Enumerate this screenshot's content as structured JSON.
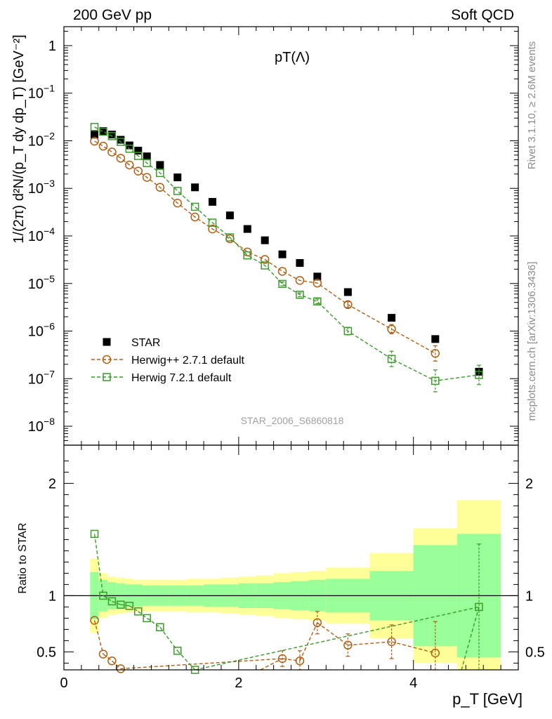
{
  "header": {
    "left": "200 GeV pp",
    "right": "Soft QCD"
  },
  "side_labels": {
    "rivet": "Rivet 3.1.10, ≥ 2.6M events",
    "mcplots": "mcplots.cern.ch [arXiv:1306.3436]"
  },
  "watermark": "STAR_2006_S6860818",
  "chart_data": [
    {
      "type": "scatter",
      "title": "pT(Λ)",
      "ylabel": "1/(2π) d²N/(p_T dy dp_T) [GeV⁻²]",
      "xlabel": "",
      "yscale": "log",
      "xlim": [
        0,
        5.2
      ],
      "ylim": [
        4e-09,
        2.5
      ],
      "yticks": [
        {
          "value": 1,
          "base": "1",
          "exp": ""
        },
        {
          "value": 0.1,
          "base": "10",
          "exp": "−1"
        },
        {
          "value": 0.01,
          "base": "10",
          "exp": "−2"
        },
        {
          "value": 0.001,
          "base": "10",
          "exp": "−3"
        },
        {
          "value": 0.0001,
          "base": "10",
          "exp": "−4"
        },
        {
          "value": 1e-05,
          "base": "10",
          "exp": "−5"
        },
        {
          "value": 1e-06,
          "base": "10",
          "exp": "−6"
        },
        {
          "value": 1e-07,
          "base": "10",
          "exp": "−7"
        },
        {
          "value": 1e-08,
          "base": "10",
          "exp": "−8"
        }
      ],
      "legend": {
        "placement": "lower-left"
      },
      "series": [
        {
          "name": "STAR",
          "color": "#000000",
          "marker": "filled-square",
          "line": "none",
          "x": [
            0.35,
            0.45,
            0.55,
            0.65,
            0.75,
            0.85,
            0.95,
            1.1,
            1.3,
            1.5,
            1.7,
            1.9,
            2.1,
            2.3,
            2.5,
            2.7,
            2.9,
            3.25,
            3.75,
            4.25,
            4.75
          ],
          "y": [
            0.0135,
            0.016,
            0.0135,
            0.0105,
            0.008,
            0.0062,
            0.0047,
            0.0031,
            0.0017,
            0.00105,
            0.00052,
            0.00027,
            0.00014,
            8.1e-05,
            4.1e-05,
            2.7e-05,
            1.4e-05,
            6.6e-06,
            1.9e-06,
            6.8e-07,
            1.4e-07
          ]
        },
        {
          "name": "Herwig++ 2.7.1 default",
          "color": "#b25e12",
          "marker": "open-circle",
          "line": "dashed",
          "x": [
            0.35,
            0.45,
            0.55,
            0.65,
            0.75,
            0.85,
            0.95,
            1.1,
            1.3,
            1.5,
            1.7,
            1.9,
            2.1,
            2.3,
            2.5,
            2.7,
            2.9,
            3.25,
            3.75,
            4.25
          ],
          "y": [
            0.0098,
            0.0077,
            0.0058,
            0.0043,
            0.0031,
            0.0023,
            0.0017,
            0.00105,
            0.00049,
            0.00025,
            0.00014,
            8.7e-05,
            4.6e-05,
            3.2e-05,
            1.8e-05,
            1.16e-05,
            1.02e-05,
            3.6e-06,
            1.1e-06,
            3.4e-07
          ],
          "yerr_rel": [
            0,
            0,
            0,
            0,
            0,
            0,
            0,
            0,
            0,
            0,
            0,
            0,
            0,
            0,
            0,
            0,
            0,
            0.15,
            0.25,
            0.45
          ]
        },
        {
          "name": "Herwig 7.2.1 default",
          "color": "#3b9a2a",
          "marker": "open-square",
          "line": "dashed",
          "x": [
            0.35,
            0.45,
            0.55,
            0.65,
            0.75,
            0.85,
            0.95,
            1.1,
            1.3,
            1.5,
            1.7,
            1.9,
            2.1,
            2.3,
            2.5,
            2.7,
            2.9,
            3.25,
            3.75,
            4.25,
            4.75
          ],
          "y": [
            0.0195,
            0.0155,
            0.0125,
            0.0095,
            0.0068,
            0.0048,
            0.0034,
            0.0021,
            0.00088,
            0.00041,
            0.00019,
            9.3e-05,
            3.9e-05,
            2.4e-05,
            9.8e-06,
            5.8e-06,
            4.2e-06,
            1e-06,
            2.6e-07,
            9e-08,
            1.2e-07
          ],
          "yerr_rel": [
            0,
            0,
            0,
            0,
            0,
            0,
            0,
            0,
            0,
            0,
            0,
            0,
            0,
            0,
            0.1,
            0.1,
            0.12,
            0.2,
            0.45,
            0.7,
            0.6
          ]
        }
      ]
    },
    {
      "type": "scatter",
      "title": "",
      "ylabel": "Ratio to STAR",
      "xlabel": "p_T [GeV]",
      "xlim": [
        0,
        5.2
      ],
      "ylim": [
        0.34,
        2.34
      ],
      "xticks": [
        0,
        2,
        4
      ],
      "yticks": [
        0.5,
        1,
        2
      ],
      "reference_line": 1,
      "bands": {
        "edges": [
          0.3,
          0.4,
          0.5,
          0.6,
          0.7,
          0.8,
          0.9,
          1.0,
          1.2,
          1.4,
          1.6,
          1.8,
          2.0,
          2.2,
          2.4,
          2.6,
          2.8,
          3.0,
          3.5,
          4.0,
          4.5,
          5.0
        ],
        "green_half": [
          0.21,
          0.14,
          0.12,
          0.11,
          0.1,
          0.1,
          0.09,
          0.09,
          0.09,
          0.09,
          0.1,
          0.1,
          0.11,
          0.11,
          0.12,
          0.13,
          0.14,
          0.15,
          0.22,
          0.45,
          0.55,
          0.68
        ],
        "yellow_half": [
          0.33,
          0.2,
          0.17,
          0.16,
          0.15,
          0.14,
          0.14,
          0.14,
          0.14,
          0.15,
          0.15,
          0.16,
          0.17,
          0.18,
          0.2,
          0.21,
          0.22,
          0.25,
          0.38,
          0.6,
          0.85,
          1.17
        ]
      },
      "series": [
        {
          "name": "Herwig++ 2.7.1 default",
          "color": "#b25e12",
          "marker": "open-circle",
          "x": [
            0.35,
            0.45,
            0.55,
            0.65,
            2.5,
            2.7,
            2.9,
            3.25,
            3.75,
            4.25
          ],
          "y": [
            0.78,
            0.48,
            0.42,
            0.35,
            0.44,
            0.42,
            0.76,
            0.56,
            0.59,
            0.49
          ],
          "yerr": [
            0,
            0,
            0,
            0,
            0.07,
            0.09,
            0.1,
            0.1,
            0.15,
            0.28
          ]
        },
        {
          "name": "Herwig 7.2.1 default",
          "color": "#3b9a2a",
          "marker": "open-square",
          "x": [
            0.35,
            0.45,
            0.55,
            0.65,
            0.75,
            0.85,
            0.95,
            1.1,
            1.3,
            1.5,
            4.75
          ],
          "y": [
            1.55,
            1.0,
            0.95,
            0.92,
            0.91,
            0.86,
            0.8,
            0.72,
            0.51,
            0.34,
            0.9
          ],
          "yerr": [
            0,
            0,
            0,
            0,
            0,
            0,
            0,
            0,
            0,
            0,
            0.56
          ]
        }
      ]
    }
  ]
}
